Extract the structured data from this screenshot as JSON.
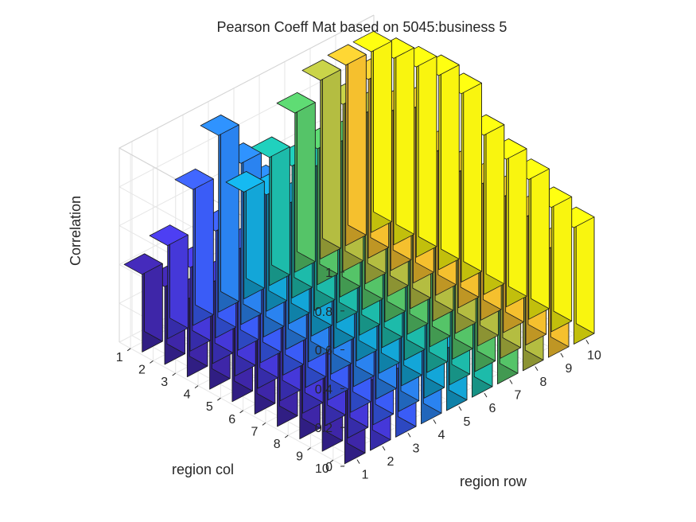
{
  "chart_data": {
    "type": "bar3d",
    "title": "Pearson Coeff Mat based on 5045:business 5",
    "xlabel": "region row",
    "ylabel": "region col",
    "zlabel": "Correlation",
    "x_ticks": [
      "1",
      "2",
      "3",
      "4",
      "5",
      "6",
      "7",
      "8",
      "9",
      "10"
    ],
    "y_ticks": [
      "1",
      "2",
      "3",
      "4",
      "5",
      "6",
      "7",
      "8",
      "9",
      "10"
    ],
    "z_ticks": [
      "0",
      "0.2",
      "0.4",
      "0.6",
      "0.8",
      "1"
    ],
    "zlim": [
      0,
      1
    ],
    "grid": true,
    "colormap": "parula, colored by region row",
    "colors": [
      "#3e26a8",
      "#4538d9",
      "#3a5cf7",
      "#2a83f0",
      "#13a6d8",
      "#1dbbaa",
      "#55c468",
      "#b4bd41",
      "#f5c02e",
      "#f9f50f"
    ],
    "values": [
      [
        0.4,
        0.48,
        0.7,
        0.91,
        0.55,
        0.66,
        0.82,
        0.92,
        0.93,
        0.93
      ],
      [
        0.4,
        0.43,
        0.55,
        0.83,
        0.6,
        0.68,
        0.7,
        0.86,
        0.92,
        0.96
      ],
      [
        0.4,
        0.42,
        0.52,
        0.78,
        0.62,
        0.74,
        0.8,
        0.88,
        0.82,
        0.98
      ],
      [
        0.4,
        0.4,
        0.48,
        0.74,
        0.58,
        0.7,
        0.8,
        0.9,
        0.9,
        1.0
      ],
      [
        0.48,
        0.52,
        0.56,
        0.6,
        0.66,
        0.72,
        0.66,
        0.7,
        0.74,
        0.97
      ],
      [
        0.47,
        0.5,
        0.53,
        0.56,
        0.64,
        0.7,
        0.58,
        0.64,
        0.7,
        0.82
      ],
      [
        0.45,
        0.48,
        0.52,
        0.55,
        0.6,
        0.64,
        0.62,
        0.68,
        0.7,
        0.76
      ],
      [
        0.45,
        0.45,
        0.5,
        0.54,
        0.45,
        0.56,
        0.6,
        0.62,
        0.7,
        0.72
      ],
      [
        0.43,
        0.44,
        0.46,
        0.48,
        0.44,
        0.5,
        0.56,
        0.6,
        0.66,
        0.64
      ],
      [
        0.48,
        0.36,
        0.35,
        0.4,
        0.32,
        0.4,
        0.44,
        0.5,
        0.56,
        0.6
      ]
    ]
  }
}
